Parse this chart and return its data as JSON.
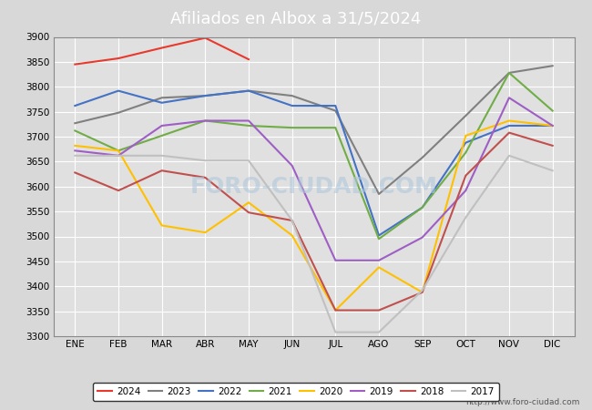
{
  "title": "Afiliados en Albox a 31/5/2024",
  "title_color": "#ffffff",
  "title_bg_color": "#4472c4",
  "months": [
    "ENE",
    "FEB",
    "MAR",
    "ABR",
    "MAY",
    "JUN",
    "JUL",
    "AGO",
    "SEP",
    "OCT",
    "NOV",
    "DIC"
  ],
  "ylim": [
    3300,
    3900
  ],
  "yticks": [
    3300,
    3350,
    3400,
    3450,
    3500,
    3550,
    3600,
    3650,
    3700,
    3750,
    3800,
    3850,
    3900
  ],
  "series": {
    "2024": {
      "color": "#e8392c",
      "data": [
        3845,
        3857,
        3878,
        3898,
        3855,
        null,
        null,
        null,
        null,
        null,
        null,
        null
      ]
    },
    "2023": {
      "color": "#808080",
      "data": [
        3727,
        3748,
        3778,
        3782,
        3792,
        3782,
        3752,
        3585,
        3658,
        3742,
        3828,
        3842
      ]
    },
    "2022": {
      "color": "#4472c4",
      "data": [
        3762,
        3792,
        3768,
        3782,
        3792,
        3762,
        3762,
        3502,
        3558,
        3688,
        3722,
        3722
      ]
    },
    "2021": {
      "color": "#70ad47",
      "data": [
        3712,
        3672,
        3702,
        3732,
        3722,
        3718,
        3718,
        3495,
        3558,
        3668,
        3828,
        3752
      ]
    },
    "2020": {
      "color": "#ffc000",
      "data": [
        3682,
        3672,
        3522,
        3508,
        3568,
        3502,
        3352,
        3438,
        3388,
        3702,
        3732,
        3722
      ]
    },
    "2019": {
      "color": "#9e5ec5",
      "data": [
        3672,
        3662,
        3722,
        3732,
        3732,
        3642,
        3452,
        3452,
        3498,
        3592,
        3778,
        3722
      ]
    },
    "2018": {
      "color": "#c0504d",
      "data": [
        3628,
        3592,
        3632,
        3618,
        3548,
        3532,
        3352,
        3352,
        3388,
        3622,
        3708,
        3682
      ]
    },
    "2017": {
      "color": "#c0c0c0",
      "data": [
        3662,
        3662,
        3662,
        3652,
        3652,
        3532,
        3308,
        3308,
        3392,
        3538,
        3662,
        3632
      ]
    }
  },
  "watermark": "FORO-CIUDAD.COM",
  "url": "http://www.foro-ciudad.com",
  "fig_bg_color": "#d8d8d8",
  "plot_bg_color": "#e0e0e0",
  "grid_color": "#ffffff"
}
